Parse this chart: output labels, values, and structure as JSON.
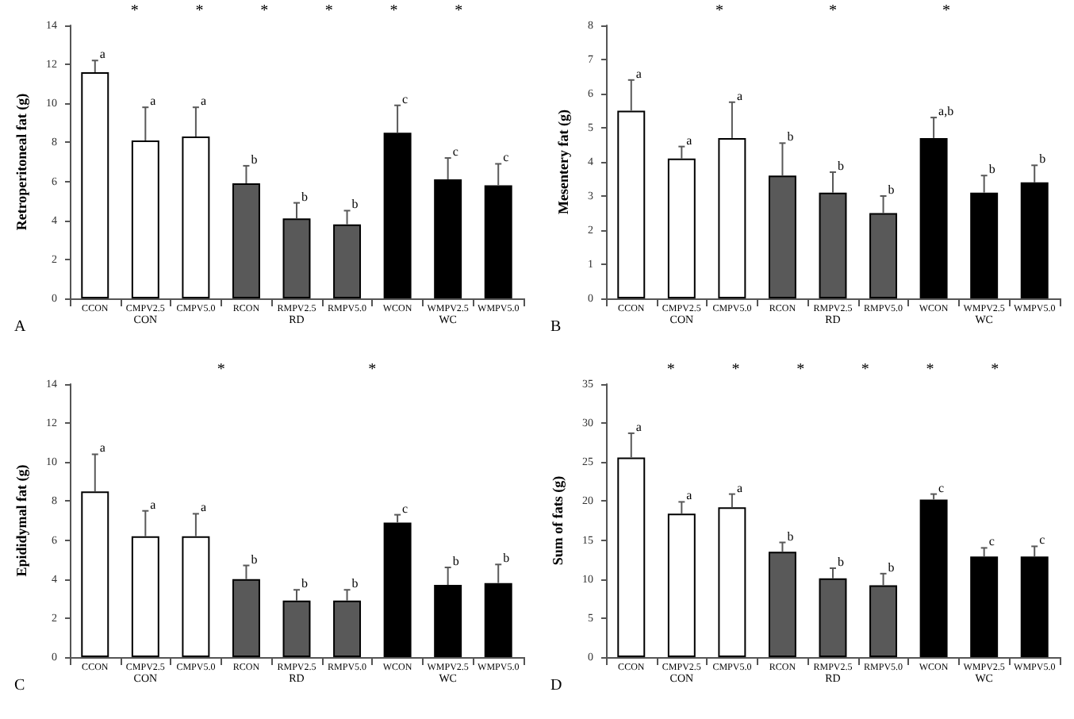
{
  "chart_data": [
    {
      "type": "bar",
      "title": "A",
      "ylabel": "Retroperitoneal fat (g)",
      "categories": [
        "CCON",
        "CMPV2.5",
        "CMPV5.0",
        "RCON",
        "RMPV2.5",
        "RMPV5.0",
        "WCON",
        "WMPV2.5",
        "WMPV5.0"
      ],
      "values": [
        11.6,
        8.1,
        8.3,
        5.9,
        4.1,
        3.8,
        8.5,
        6.1,
        5.8
      ],
      "colors": [
        "#ffffff",
        "#ffffff",
        "#ffffff",
        "#595959",
        "#595959",
        "#595959",
        "#000000",
        "#000000",
        "#000000"
      ],
      "errors": [
        [
          11.6,
          12.2
        ],
        [
          8.1,
          9.8
        ],
        [
          8.3,
          9.8
        ],
        [
          5.9,
          6.8
        ],
        [
          4.1,
          4.9
        ],
        [
          3.8,
          4.5
        ],
        [
          8.5,
          9.9
        ],
        [
          6.1,
          7.2
        ],
        [
          5.8,
          6.9
        ]
      ],
      "value_labels": [
        "a",
        "a",
        "a",
        "b",
        "b",
        "b",
        "c",
        "c",
        "c"
      ],
      "ylim": [
        0,
        14
      ],
      "yticks": [
        0,
        2,
        4,
        6,
        8,
        10,
        12,
        14
      ],
      "grid": false,
      "annotations": [
        "CON",
        "RD",
        "WC",
        "*",
        "*",
        "*",
        "*",
        "*",
        "*"
      ]
    },
    {
      "type": "bar",
      "title": "B",
      "ylabel": "Mesentery fat (g)",
      "categories": [
        "CCON",
        "CMPV2.5",
        "CMPV5.0",
        "RCON",
        "RMPV2.5",
        "RMPV5.0",
        "WCON",
        "WMPV2.5",
        "WMPV5.0"
      ],
      "values": [
        5.5,
        4.1,
        4.7,
        3.6,
        3.1,
        2.5,
        4.7,
        3.1,
        3.4
      ],
      "colors": [
        "#ffffff",
        "#ffffff",
        "#ffffff",
        "#595959",
        "#595959",
        "#595959",
        "#000000",
        "#000000",
        "#000000"
      ],
      "errors": [
        [
          5.5,
          6.4
        ],
        [
          4.1,
          4.45
        ],
        [
          4.7,
          5.75
        ],
        [
          3.6,
          4.55
        ],
        [
          3.1,
          3.7
        ],
        [
          2.5,
          3.0
        ],
        [
          4.7,
          5.3
        ],
        [
          3.1,
          3.6
        ],
        [
          3.4,
          3.9
        ]
      ],
      "value_labels": [
        "a",
        "a",
        "a",
        "b",
        "b",
        "b",
        "a,b",
        "b",
        "b"
      ],
      "ylim": [
        0,
        8
      ],
      "yticks": [
        0,
        1,
        2,
        3,
        4,
        5,
        6,
        7,
        8
      ],
      "grid": false,
      "annotations": [
        "CON",
        "RD",
        "WC",
        "*",
        "*",
        "*"
      ]
    },
    {
      "type": "bar",
      "title": "C",
      "ylabel": "Epididymal fat (g)",
      "categories": [
        "CCON",
        "CMPV2.5",
        "CMPV5.0",
        "RCON",
        "RMPV2.5",
        "RMPV5.0",
        "WCON",
        "WMPV2.5",
        "WMPV5.0"
      ],
      "values": [
        8.5,
        6.2,
        6.2,
        4.0,
        2.9,
        2.9,
        6.9,
        3.7,
        3.8
      ],
      "colors": [
        "#ffffff",
        "#ffffff",
        "#ffffff",
        "#595959",
        "#595959",
        "#595959",
        "#000000",
        "#000000",
        "#000000"
      ],
      "errors": [
        [
          8.5,
          10.4
        ],
        [
          6.2,
          7.5
        ],
        [
          6.2,
          7.35
        ],
        [
          4.0,
          4.7
        ],
        [
          2.9,
          3.45
        ],
        [
          2.9,
          3.45
        ],
        [
          6.9,
          7.3
        ],
        [
          3.7,
          4.6
        ],
        [
          3.8,
          4.75
        ]
      ],
      "value_labels": [
        "a",
        "a",
        "a",
        "b",
        "b",
        "b",
        "c",
        "b",
        "b"
      ],
      "ylim": [
        0,
        14
      ],
      "yticks": [
        0,
        2,
        4,
        6,
        8,
        10,
        12,
        14
      ],
      "grid": false,
      "annotations": [
        "CON",
        "RD",
        "WC",
        "*",
        "*"
      ]
    },
    {
      "type": "bar",
      "title": "D",
      "ylabel": "Sum of fats (g)",
      "categories": [
        "CCON",
        "CMPV2.5",
        "CMPV5.0",
        "RCON",
        "RMPV2.5",
        "RMPV5.0",
        "WCON",
        "WMPV2.5",
        "WMPV5.0"
      ],
      "values": [
        25.6,
        18.4,
        19.2,
        13.5,
        10.1,
        9.2,
        20.2,
        12.9,
        12.9
      ],
      "colors": [
        "#ffffff",
        "#ffffff",
        "#ffffff",
        "#595959",
        "#595959",
        "#595959",
        "#000000",
        "#000000",
        "#000000"
      ],
      "errors": [
        [
          25.6,
          28.7
        ],
        [
          18.4,
          19.9
        ],
        [
          19.2,
          20.9
        ],
        [
          13.5,
          14.7
        ],
        [
          10.1,
          11.4
        ],
        [
          9.2,
          10.7
        ],
        [
          20.2,
          20.9
        ],
        [
          12.9,
          14.0
        ],
        [
          12.9,
          14.2
        ]
      ],
      "value_labels": [
        "a",
        "a",
        "a",
        "b",
        "b",
        "b",
        "c",
        "c",
        "c"
      ],
      "ylim": [
        0,
        35
      ],
      "yticks": [
        0,
        5,
        10,
        15,
        20,
        25,
        30,
        35
      ],
      "grid": false,
      "annotations": [
        "CON",
        "RD",
        "WC",
        "*",
        "*",
        "*",
        "*",
        "*",
        "*"
      ]
    }
  ]
}
